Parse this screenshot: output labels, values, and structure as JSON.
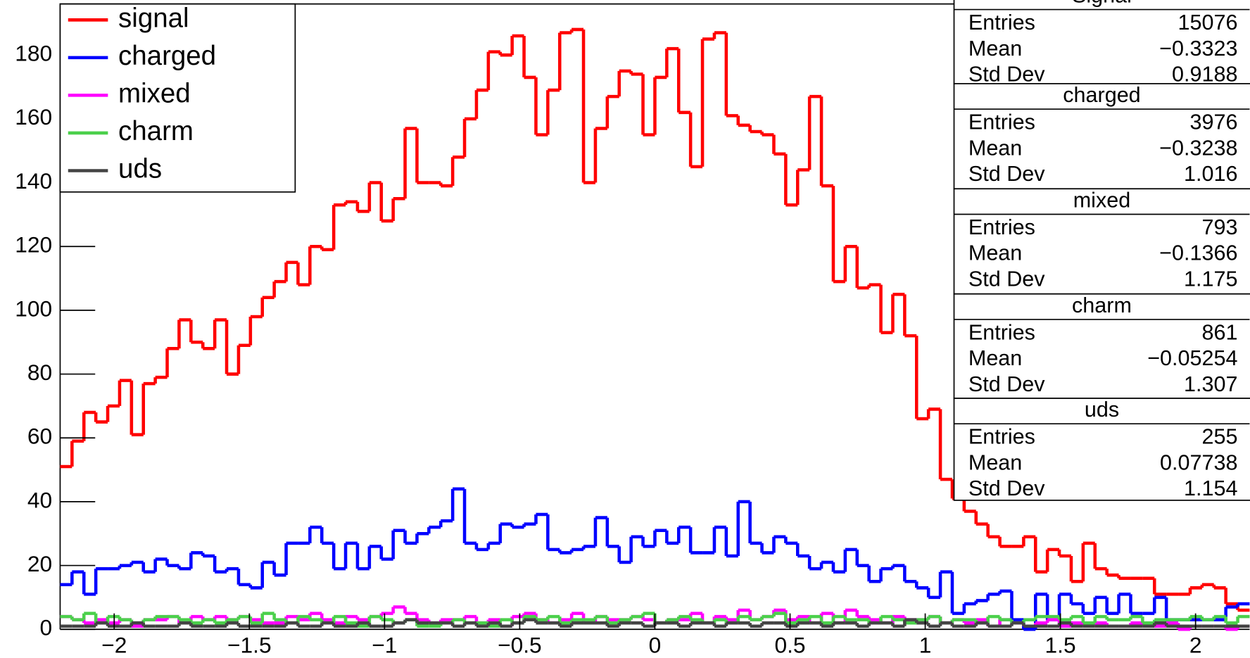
{
  "chart_data": {
    "type": "histogram",
    "bins": [
      -2.2,
      -2.156,
      -2.112,
      -2.068,
      -2.024,
      -1.98,
      -1.936,
      -1.892,
      -1.848,
      -1.804,
      -1.76,
      -1.716,
      -1.672,
      -1.628,
      -1.584,
      -1.54,
      -1.496,
      -1.452,
      -1.408,
      -1.364,
      -1.32,
      -1.276,
      -1.232,
      -1.188,
      -1.144,
      -1.1,
      -1.056,
      -1.012,
      -0.968,
      -0.924,
      -0.88,
      -0.836,
      -0.792,
      -0.748,
      -0.704,
      -0.66,
      -0.616,
      -0.572,
      -0.528,
      -0.484,
      -0.44,
      -0.396,
      -0.352,
      -0.308,
      -0.264,
      -0.22,
      -0.176,
      -0.132,
      -0.088,
      -0.044,
      0,
      0.044,
      0.088,
      0.132,
      0.176,
      0.22,
      0.264,
      0.308,
      0.352,
      0.396,
      0.44,
      0.484,
      0.528,
      0.572,
      0.616,
      0.66,
      0.704,
      0.748,
      0.792,
      0.836,
      0.88,
      0.924,
      0.968,
      1.012,
      1.056,
      1.1,
      1.144,
      1.188,
      1.232,
      1.276,
      1.32,
      1.364,
      1.408,
      1.452,
      1.496,
      1.54,
      1.584,
      1.628,
      1.672,
      1.716,
      1.76,
      1.804,
      1.848,
      1.892,
      1.936,
      1.98,
      2.024,
      2.068,
      2.112,
      2.156,
      2.2
    ],
    "series": [
      {
        "name": "signal",
        "color": "#ff0000",
        "values": [
          51,
          59,
          68,
          65,
          70,
          78,
          61,
          77,
          79,
          88,
          97,
          90,
          88,
          97,
          80,
          89,
          98,
          104,
          109,
          115,
          108,
          120,
          119,
          133,
          134,
          131,
          140,
          128,
          135,
          157,
          140,
          140,
          139,
          148,
          160,
          169,
          181,
          180,
          186,
          173,
          155,
          169,
          187,
          188,
          140,
          157,
          167,
          175,
          174,
          155,
          173,
          182,
          162,
          145,
          185,
          187,
          161,
          158,
          156,
          155,
          149,
          133,
          144,
          167,
          139,
          109,
          120,
          107,
          108,
          93,
          105,
          92,
          66,
          69,
          47,
          41,
          37,
          33,
          29,
          26,
          26,
          29,
          18,
          25,
          23,
          15,
          27,
          19,
          17,
          16,
          16,
          16,
          11,
          11,
          11,
          13,
          14,
          13,
          8,
          6
        ]
      },
      {
        "name": "charged",
        "color": "#0000ff",
        "values": [
          14,
          18,
          11,
          19,
          19,
          20,
          21,
          18,
          22,
          20,
          19,
          24,
          23,
          18,
          19,
          14,
          13,
          21,
          17,
          27,
          27,
          32,
          27,
          19,
          27,
          19,
          26,
          22,
          31,
          27,
          30,
          32,
          34,
          44,
          27,
          25,
          27,
          33,
          32,
          33,
          36,
          25,
          24,
          25,
          26,
          35,
          26,
          21,
          29,
          26,
          31,
          27,
          32,
          24,
          24,
          32,
          23,
          40,
          27,
          24,
          29,
          27,
          23,
          19,
          21,
          18,
          25,
          20,
          15,
          19,
          20,
          15,
          13,
          10,
          18,
          5,
          8,
          9,
          11,
          12,
          3,
          0,
          11,
          3,
          11,
          8,
          5,
          10,
          5,
          11,
          5,
          5,
          10,
          3,
          3,
          3,
          3,
          3,
          7,
          8
        ]
      },
      {
        "name": "mixed",
        "color": "#ff00ff",
        "values": [
          4,
          3,
          2,
          3,
          2,
          3,
          1,
          3,
          3,
          4,
          2,
          4,
          3,
          4,
          3,
          4,
          3,
          2,
          2,
          4,
          3,
          5,
          3,
          2,
          4,
          3,
          4,
          5,
          7,
          5,
          3,
          2,
          3,
          3,
          4,
          2,
          3,
          1,
          4,
          5,
          3,
          2,
          3,
          5,
          2,
          4,
          3,
          3,
          4,
          3,
          2,
          3,
          3,
          5,
          2,
          4,
          3,
          6,
          3,
          4,
          6,
          3,
          4,
          2,
          5,
          2,
          6,
          4,
          3,
          2,
          4,
          3,
          3,
          4,
          2,
          3,
          2,
          3,
          1,
          3,
          2,
          1,
          2,
          3,
          1,
          2,
          1,
          2,
          1,
          1,
          2,
          1,
          1,
          2,
          0,
          1,
          1,
          1,
          0,
          1
        ]
      },
      {
        "name": "charm",
        "color": "#4bd04b",
        "values": [
          4,
          3,
          5,
          2,
          4,
          3,
          2,
          3,
          4,
          4,
          3,
          2,
          3,
          2,
          3,
          4,
          2,
          5,
          3,
          2,
          4,
          3,
          2,
          4,
          2,
          1,
          4,
          3,
          2,
          3,
          1,
          1,
          2,
          3,
          2,
          2,
          1,
          3,
          2,
          4,
          3,
          4,
          2,
          3,
          3,
          4,
          2,
          3,
          4,
          5,
          2,
          3,
          4,
          3,
          2,
          3,
          2,
          4,
          3,
          4,
          5,
          2,
          3,
          4,
          2,
          4,
          3,
          3,
          2,
          4,
          3,
          2,
          3,
          4,
          2,
          3,
          3,
          2,
          4,
          3,
          2,
          3,
          4,
          4,
          3,
          4,
          2,
          4,
          3,
          3,
          4,
          2,
          3,
          3,
          3,
          4,
          3,
          4,
          2,
          4
        ]
      },
      {
        "name": "uds",
        "color": "#444444",
        "values": [
          1,
          1,
          1,
          2,
          1,
          1,
          2,
          1,
          1,
          1,
          2,
          1,
          1,
          1,
          2,
          1,
          1,
          1,
          1,
          2,
          1,
          1,
          2,
          1,
          1,
          2,
          1,
          1,
          2,
          3,
          2,
          2,
          2,
          1,
          2,
          1,
          2,
          1,
          2,
          3,
          2,
          2,
          1,
          2,
          2,
          2,
          1,
          2,
          2,
          1,
          2,
          2,
          1,
          2,
          2,
          1,
          2,
          2,
          1,
          2,
          2,
          1,
          2,
          2,
          1,
          2,
          2,
          1,
          2,
          2,
          1,
          3,
          2,
          1,
          2,
          1,
          1,
          2,
          1,
          1,
          2,
          1,
          1,
          1,
          2,
          1,
          1,
          1,
          1,
          1,
          1,
          1,
          2,
          1,
          1,
          1,
          1,
          1,
          1,
          1
        ]
      }
    ],
    "xlim": [
      -2.2,
      2.2
    ],
    "ylim": [
      0,
      196
    ],
    "xticks": [
      {
        "value": -2,
        "label": "−2"
      },
      {
        "value": -1.5,
        "label": "−1.5"
      },
      {
        "value": -1,
        "label": "−1"
      },
      {
        "value": -0.5,
        "label": "−0.5"
      },
      0,
      0.5,
      1,
      1.5,
      2
    ],
    "yticks": [
      0,
      20,
      40,
      60,
      80,
      100,
      120,
      140,
      160,
      180
    ],
    "legend": "top-left",
    "stats": [
      {
        "title": "Signal",
        "rows": [
          [
            "Entries",
            "15076"
          ],
          [
            "Mean",
            "−0.3323"
          ],
          [
            "Std Dev",
            "0.9188"
          ]
        ]
      },
      {
        "title": "charged",
        "rows": [
          [
            "Entries",
            "3976"
          ],
          [
            "Mean",
            "−0.3238"
          ],
          [
            "Std Dev",
            "1.016"
          ]
        ]
      },
      {
        "title": "mixed",
        "rows": [
          [
            "Entries",
            "793"
          ],
          [
            "Mean",
            "−0.1366"
          ],
          [
            "Std Dev",
            "1.175"
          ]
        ]
      },
      {
        "title": "charm",
        "rows": [
          [
            "Entries",
            "861"
          ],
          [
            "Mean",
            "−0.05254"
          ],
          [
            "Std Dev",
            "1.307"
          ]
        ]
      },
      {
        "title": "uds",
        "rows": [
          [
            "Entries",
            "255"
          ],
          [
            "Mean",
            "0.07738"
          ],
          [
            "Std Dev",
            "1.154"
          ]
        ]
      }
    ]
  }
}
